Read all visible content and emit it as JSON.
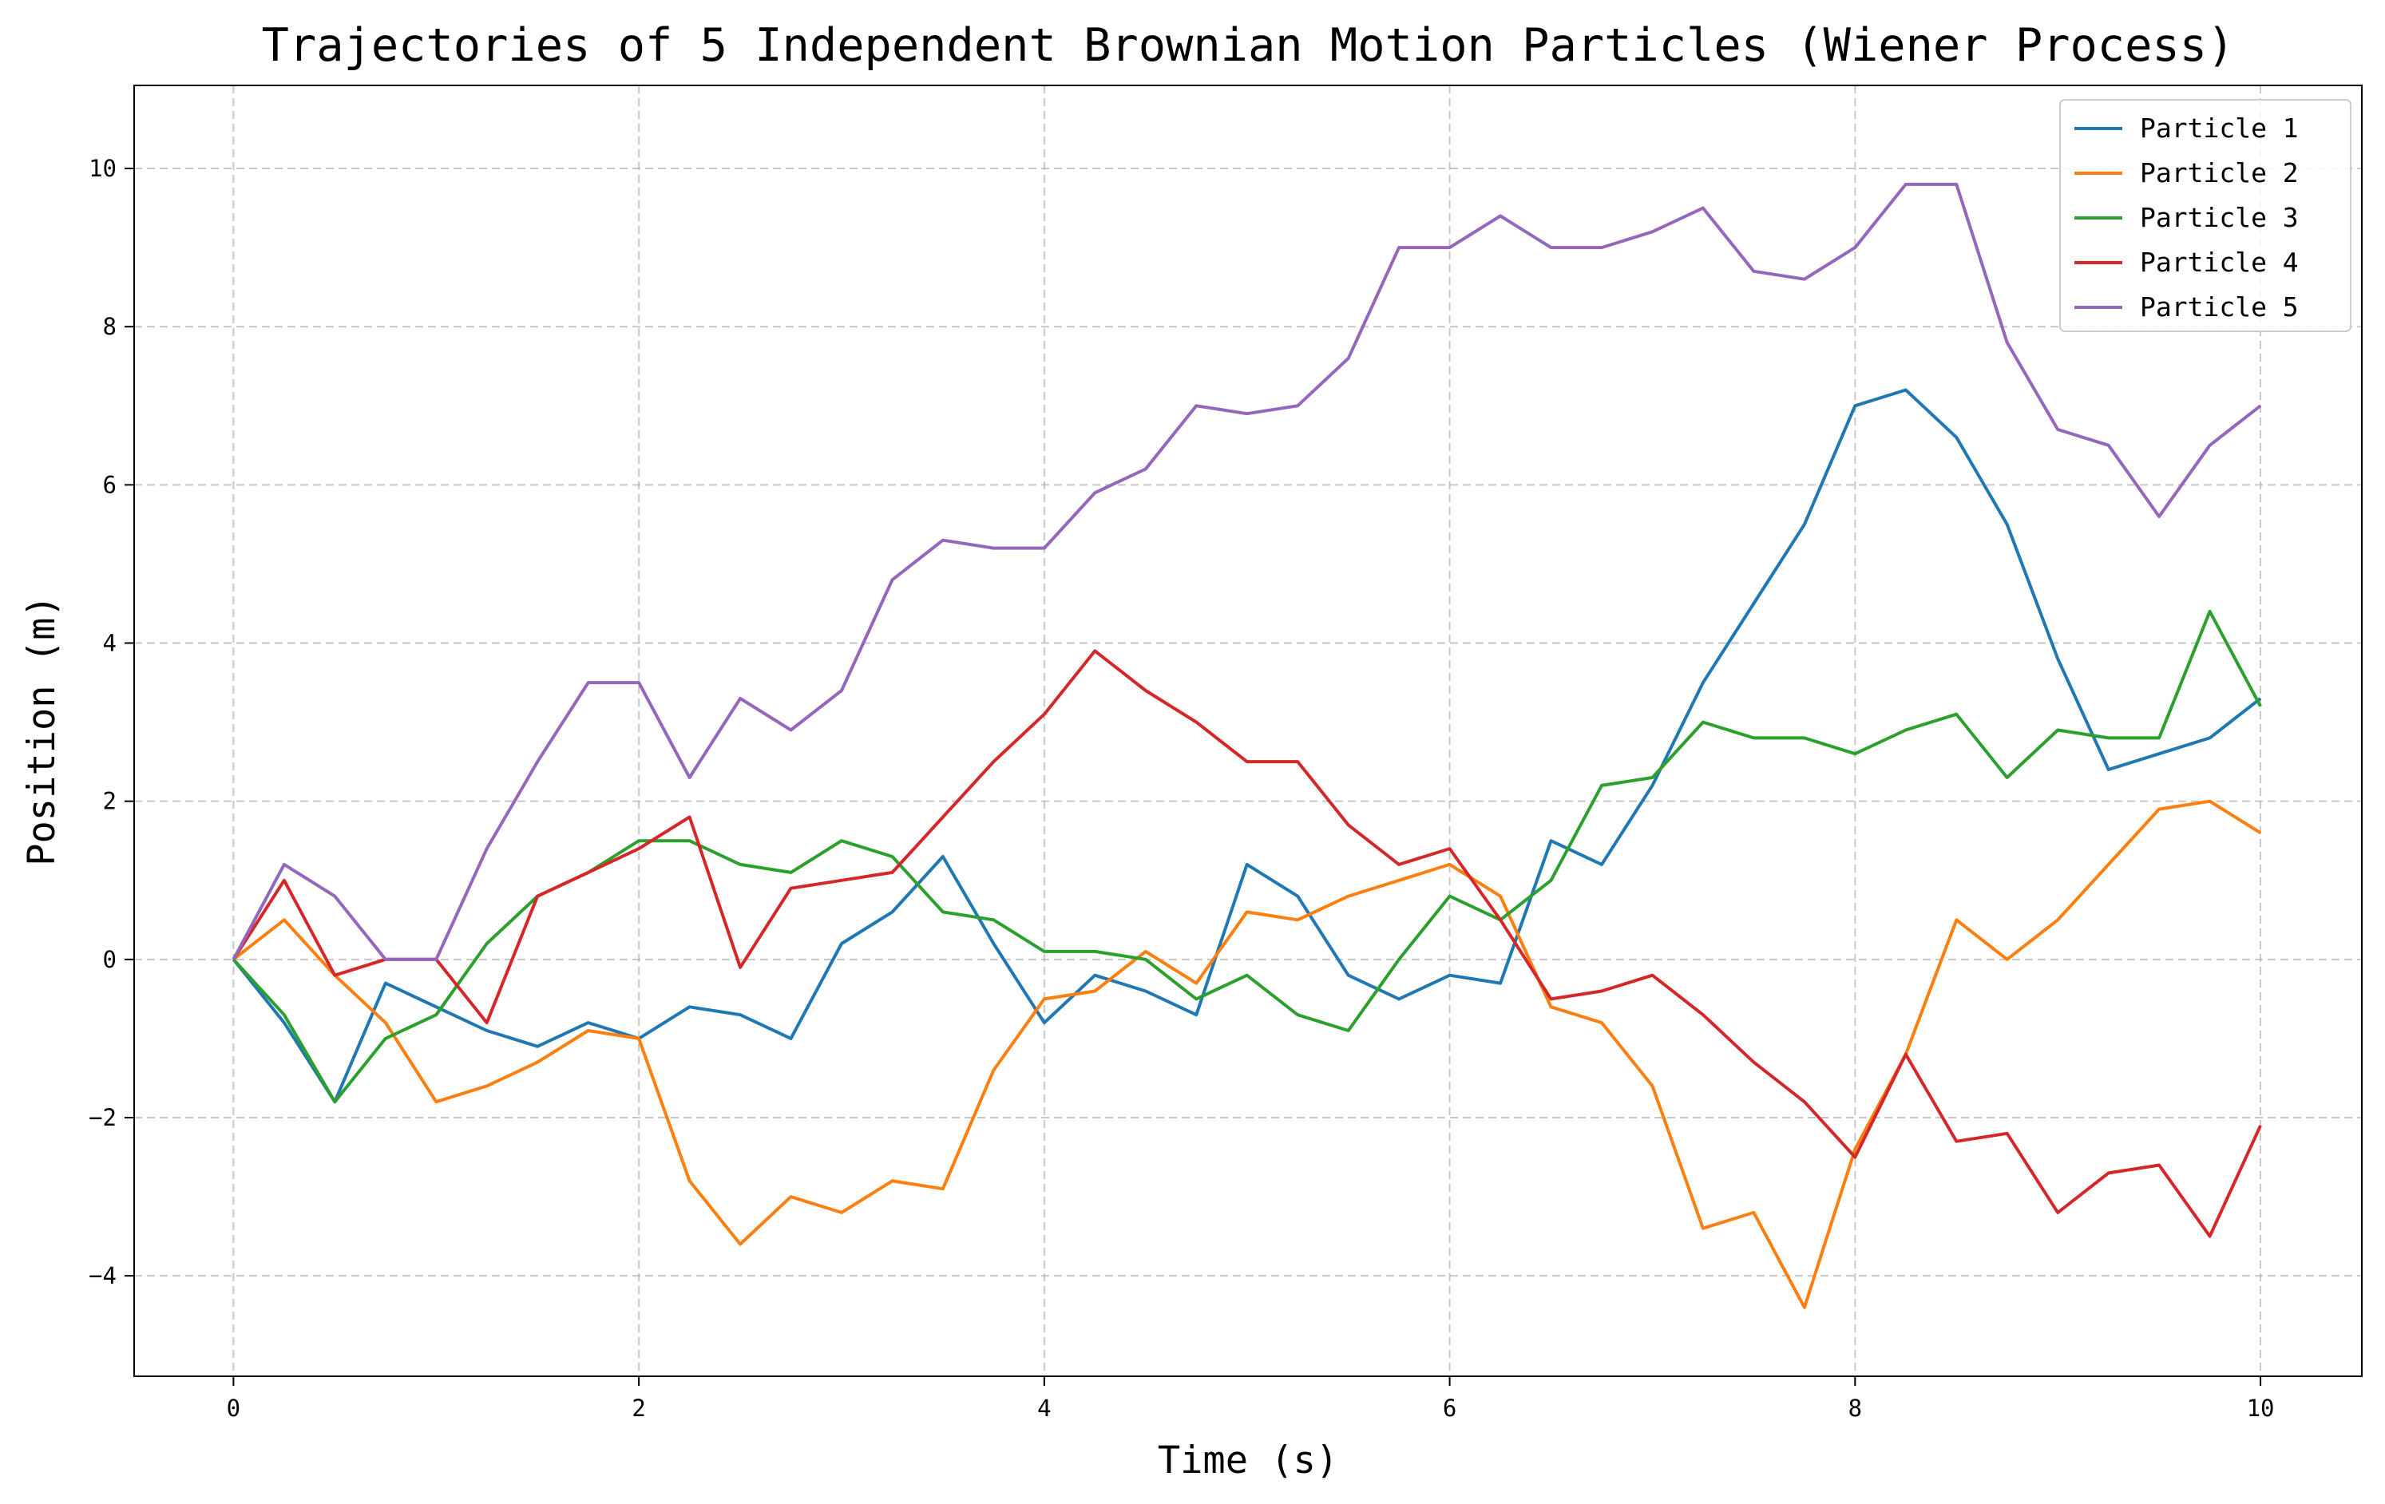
{
  "chart_data": {
    "type": "line",
    "title": "Trajectories of 5 Independent Brownian Motion Particles (Wiener Process)",
    "xlabel": "Time (s)",
    "ylabel": "Position (m)",
    "xlim": [
      -0.49,
      10.5
    ],
    "ylim": [
      -5.27,
      11.05
    ],
    "xticks": [
      0,
      2,
      4,
      6,
      8,
      10
    ],
    "yticks": [
      -4,
      -2,
      0,
      2,
      4,
      6,
      8,
      10
    ],
    "grid": true,
    "legend_position": "top-right",
    "x": [
      0,
      0.25,
      0.5,
      0.75,
      1,
      1.25,
      1.5,
      1.75,
      2,
      2.25,
      2.5,
      2.75,
      3,
      3.25,
      3.5,
      3.75,
      4,
      4.25,
      4.5,
      4.75,
      5,
      5.25,
      5.5,
      5.75,
      6,
      6.25,
      6.5,
      6.75,
      7,
      7.25,
      7.5,
      7.75,
      8,
      8.25,
      8.5,
      8.75,
      9,
      9.25,
      9.5,
      9.75,
      10
    ],
    "series": [
      {
        "name": "Particle 1",
        "color": "#1f77b4",
        "values": [
          0,
          -0.8,
          -1.8,
          -0.3,
          -0.6,
          -0.9,
          -1.1,
          -0.8,
          -1.0,
          -0.6,
          -0.7,
          -1.0,
          0.2,
          0.6,
          1.3,
          0.2,
          -0.8,
          -0.2,
          -0.4,
          -0.7,
          1.2,
          0.8,
          -0.2,
          -0.5,
          -0.2,
          -0.3,
          1.5,
          1.2,
          2.2,
          3.5,
          4.5,
          5.5,
          7.0,
          7.2,
          6.6,
          5.5,
          3.8,
          2.4,
          2.6,
          2.8,
          3.3
        ]
      },
      {
        "name": "Particle 2",
        "color": "#ff7f0e",
        "values": [
          0,
          0.5,
          -0.2,
          -0.8,
          -1.8,
          -1.6,
          -1.3,
          -0.9,
          -1.0,
          -2.8,
          -3.6,
          -3.0,
          -3.2,
          -2.8,
          -2.9,
          -1.4,
          -0.5,
          -0.4,
          0.1,
          -0.3,
          0.6,
          0.5,
          0.8,
          1.0,
          1.2,
          0.8,
          -0.6,
          -0.8,
          -1.6,
          -3.4,
          -3.2,
          -4.4,
          -2.4,
          -1.2,
          0.5,
          0.0,
          0.5,
          1.2,
          1.9,
          2.0,
          1.6
        ]
      },
      {
        "name": "Particle 3",
        "color": "#2ca02c",
        "values": [
          0,
          -0.7,
          -1.8,
          -1.0,
          -0.7,
          0.2,
          0.8,
          1.1,
          1.5,
          1.5,
          1.2,
          1.1,
          1.5,
          1.3,
          0.6,
          0.5,
          0.1,
          0.1,
          0.0,
          -0.5,
          -0.2,
          -0.7,
          -0.9,
          0.0,
          0.8,
          0.5,
          1.0,
          2.2,
          2.3,
          3.0,
          2.8,
          2.8,
          2.6,
          2.9,
          3.1,
          2.3,
          2.9,
          2.8,
          2.8,
          4.4,
          3.2
        ]
      },
      {
        "name": "Particle 4",
        "color": "#d62728",
        "values": [
          0,
          1.0,
          -0.2,
          0.0,
          0.0,
          -0.8,
          0.8,
          1.1,
          1.4,
          1.8,
          -0.1,
          0.9,
          1.0,
          1.1,
          1.8,
          2.5,
          3.1,
          3.9,
          3.4,
          3.0,
          2.5,
          2.5,
          1.7,
          1.2,
          1.4,
          0.5,
          -0.5,
          -0.4,
          -0.2,
          -0.7,
          -1.3,
          -1.8,
          -2.5,
          -1.2,
          -2.3,
          -2.2,
          -3.2,
          -2.7,
          -2.6,
          -3.5,
          -2.1
        ]
      },
      {
        "name": "Particle 5",
        "color": "#9467bd",
        "values": [
          0,
          1.2,
          0.8,
          0.0,
          0.0,
          1.4,
          2.5,
          3.5,
          3.5,
          2.3,
          3.3,
          2.9,
          3.4,
          4.8,
          5.3,
          5.2,
          5.2,
          5.9,
          6.2,
          7.0,
          6.9,
          7.0,
          7.6,
          9.0,
          9.0,
          9.4,
          9.0,
          9.0,
          9.2,
          9.5,
          8.7,
          8.6,
          9.0,
          9.8,
          9.8,
          7.8,
          6.7,
          6.5,
          5.6,
          6.5,
          7.0
        ]
      }
    ]
  }
}
